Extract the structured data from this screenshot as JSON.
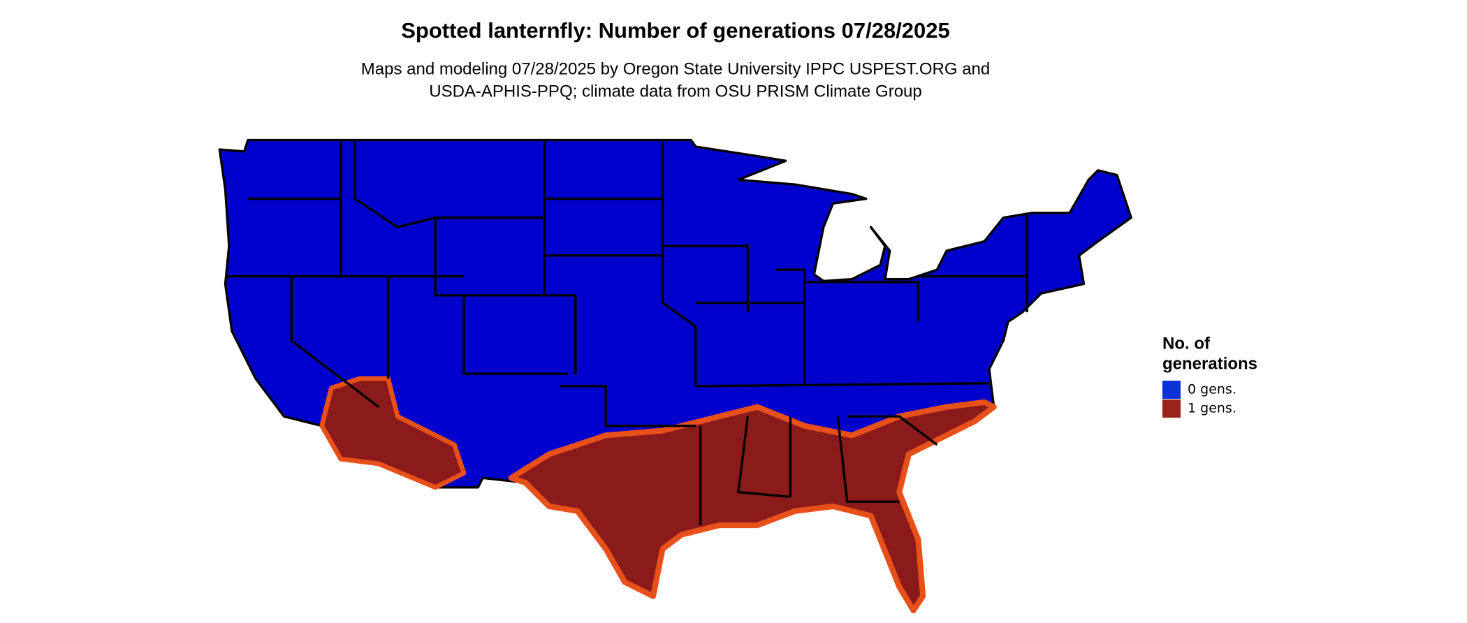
{
  "title": "Spotted lanternfly: Number of generations 07/28/2025",
  "subtitle": [
    "Maps and modeling 07/28/2025 by Oregon State University IPPC USPEST.ORG and",
    "USDA-APHIS-PPQ; climate data from OSU PRISM Climate Group"
  ],
  "legend": {
    "title": [
      "No. of",
      "generations"
    ],
    "items": [
      {
        "label": "0 gens.",
        "color": "#0a32d8"
      },
      {
        "label": "1 gens.",
        "color": "#9b2218"
      }
    ]
  }
}
